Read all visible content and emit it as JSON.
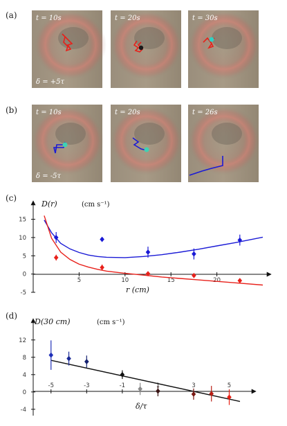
{
  "panels": {
    "a": {
      "tag": "(a)",
      "times": [
        "t = 10s",
        "t = 20s",
        "t = 30s"
      ],
      "delta": "δ = +5τ"
    },
    "b": {
      "tag": "(b)",
      "times": [
        "t = 10s",
        "t = 20s",
        "t = 26s"
      ],
      "delta": "δ = -5τ"
    },
    "c": {
      "tag": "(c)",
      "ylabel": "D(r)",
      "unit": "(cm s⁻¹)",
      "xlabel": "r  (cm)"
    },
    "d": {
      "tag": "(d)",
      "ylabel": "D(30 cm)",
      "unit": "(cm s⁻¹)",
      "xlabel": "δ/τ"
    }
  },
  "colors": {
    "red": "#e8201a",
    "blue": "#1a1ad6",
    "dark": "#111111",
    "photo_bg": "#8c8272",
    "ring": "#c86a64"
  },
  "chart_data": [
    {
      "type": "scatter",
      "title": "",
      "xlabel": "r (cm)",
      "ylabel": "D(r) (cm s⁻¹)",
      "xlim": [
        0,
        25
      ],
      "ylim": [
        -5,
        17
      ],
      "x_ticks": [
        5,
        10,
        15,
        20
      ],
      "y_ticks": [
        -5,
        0,
        5,
        10,
        15
      ],
      "series": [
        {
          "color": "#1a1ad6",
          "x": [
            2.5,
            7.5,
            12.5,
            17.5,
            22.5
          ],
          "y": [
            10.0,
            9.5,
            6.0,
            5.5,
            9.3
          ],
          "err": [
            1.5,
            0.0,
            1.5,
            1.5,
            1.5
          ]
        },
        {
          "color": "#e8201a",
          "x": [
            2.5,
            7.5,
            12.5,
            17.5,
            22.5
          ],
          "y": [
            4.5,
            1.8,
            0.1,
            -0.4,
            -1.8
          ],
          "err": [
            0.8,
            0.8,
            0.0,
            0.0,
            0.6
          ]
        }
      ],
      "fits": [
        {
          "color": "#1a1ad6",
          "x": [
            1.2,
            2,
            3,
            4,
            5,
            6,
            7,
            8,
            10,
            12,
            14,
            16,
            18,
            20,
            22,
            25
          ],
          "y": [
            14.8,
            11.3,
            8.4,
            6.9,
            5.9,
            5.2,
            4.8,
            4.6,
            4.5,
            4.8,
            5.3,
            6.0,
            6.8,
            7.7,
            8.6,
            10.1
          ]
        },
        {
          "color": "#e8201a",
          "x": [
            1.2,
            2,
            3,
            4,
            5,
            6,
            7,
            8,
            10,
            12,
            14,
            16,
            18,
            20,
            22,
            25
          ],
          "y": [
            16.0,
            9.8,
            6.0,
            4.0,
            2.7,
            1.9,
            1.3,
            0.8,
            0.2,
            -0.3,
            -0.8,
            -1.2,
            -1.6,
            -2.0,
            -2.4,
            -3.0
          ]
        }
      ]
    },
    {
      "type": "scatter",
      "title": "",
      "xlabel": "δ/τ",
      "ylabel": "D(30 cm) (cm s⁻¹)",
      "xlim": [
        -6,
        6.3
      ],
      "ylim": [
        -4.5,
        15
      ],
      "x_ticks": [
        -5,
        -3,
        -1,
        1,
        3,
        5
      ],
      "y_ticks": [
        -4,
        0,
        4,
        8,
        12
      ],
      "series": [
        {
          "x": [
            -5,
            -4,
            -3,
            -1,
            0,
            1,
            3,
            4,
            5
          ],
          "y": [
            8.5,
            7.7,
            7.0,
            4.0,
            0.7,
            0.2,
            -0.5,
            -0.4,
            -1.2
          ],
          "err": [
            3.4,
            1.6,
            1.4,
            1.0,
            1.4,
            1.2,
            1.3,
            1.8,
            1.8
          ],
          "colors": [
            "#1f2fb8",
            "#1a2a96",
            "#152270",
            "#111111",
            "#8a8a8a",
            "#3a1414",
            "#7a1a14",
            "#b81e14",
            "#e82014"
          ]
        }
      ],
      "fits": [
        {
          "color": "#111111",
          "x": [
            -5,
            5.6
          ],
          "y": [
            7.3,
            -2.2
          ]
        }
      ]
    }
  ]
}
